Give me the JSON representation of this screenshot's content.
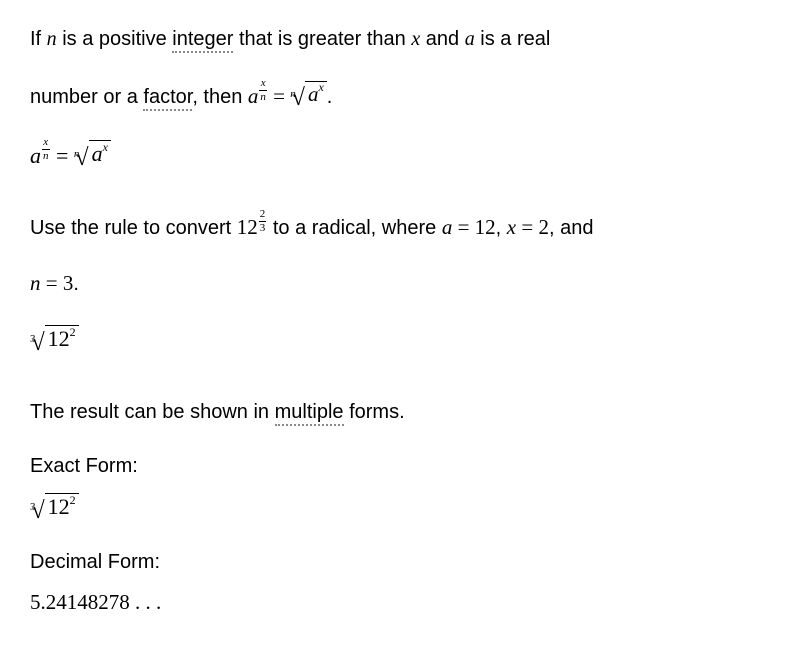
{
  "text": {
    "intro_part1": "If ",
    "n_var": "n",
    "intro_part2": " is a positive ",
    "underline1": "integer",
    "intro_part3": " that is greater than ",
    "x_var": "x",
    "intro_part4": " and ",
    "a_var": "a",
    "intro_part5": " is a real",
    "line2_part1": "number or a ",
    "underline2": "factor",
    "line2_part2": ", then ",
    "period": ".",
    "convert_part1": "Use the rule to convert ",
    "convert_part2": " to a radical, where ",
    "eq1_lhs": "a",
    "eq1_eq": " = ",
    "eq1_rhs": "12",
    "comma": ", ",
    "eq2_lhs": "x",
    "eq2_rhs": "2",
    "and": ", and",
    "eq3_lhs": "n",
    "eq3_rhs": "3",
    "result_part1": "The result can be shown in ",
    "underline3": "multiple",
    "result_part2": " forms.",
    "exact_label": "Exact Form:",
    "decimal_label": "Decimal Form:",
    "decimal_value": "5.24148278 . . ."
  },
  "formula": {
    "rule_lhs_base": "a",
    "rule_frac_num": "x",
    "rule_frac_den": "n",
    "rule_root_index": "n",
    "rule_root_base": "a",
    "rule_root_exp": "x",
    "convert_base": "12",
    "convert_frac_num": "2",
    "convert_frac_den": "3",
    "result_root_index": "3",
    "result_root_base": "12",
    "result_root_exp": "2"
  },
  "style": {
    "text_color": "#000000",
    "underline_color": "#888888",
    "background": "#ffffff",
    "body_fontsize": 20,
    "math_fontsize": 21
  }
}
